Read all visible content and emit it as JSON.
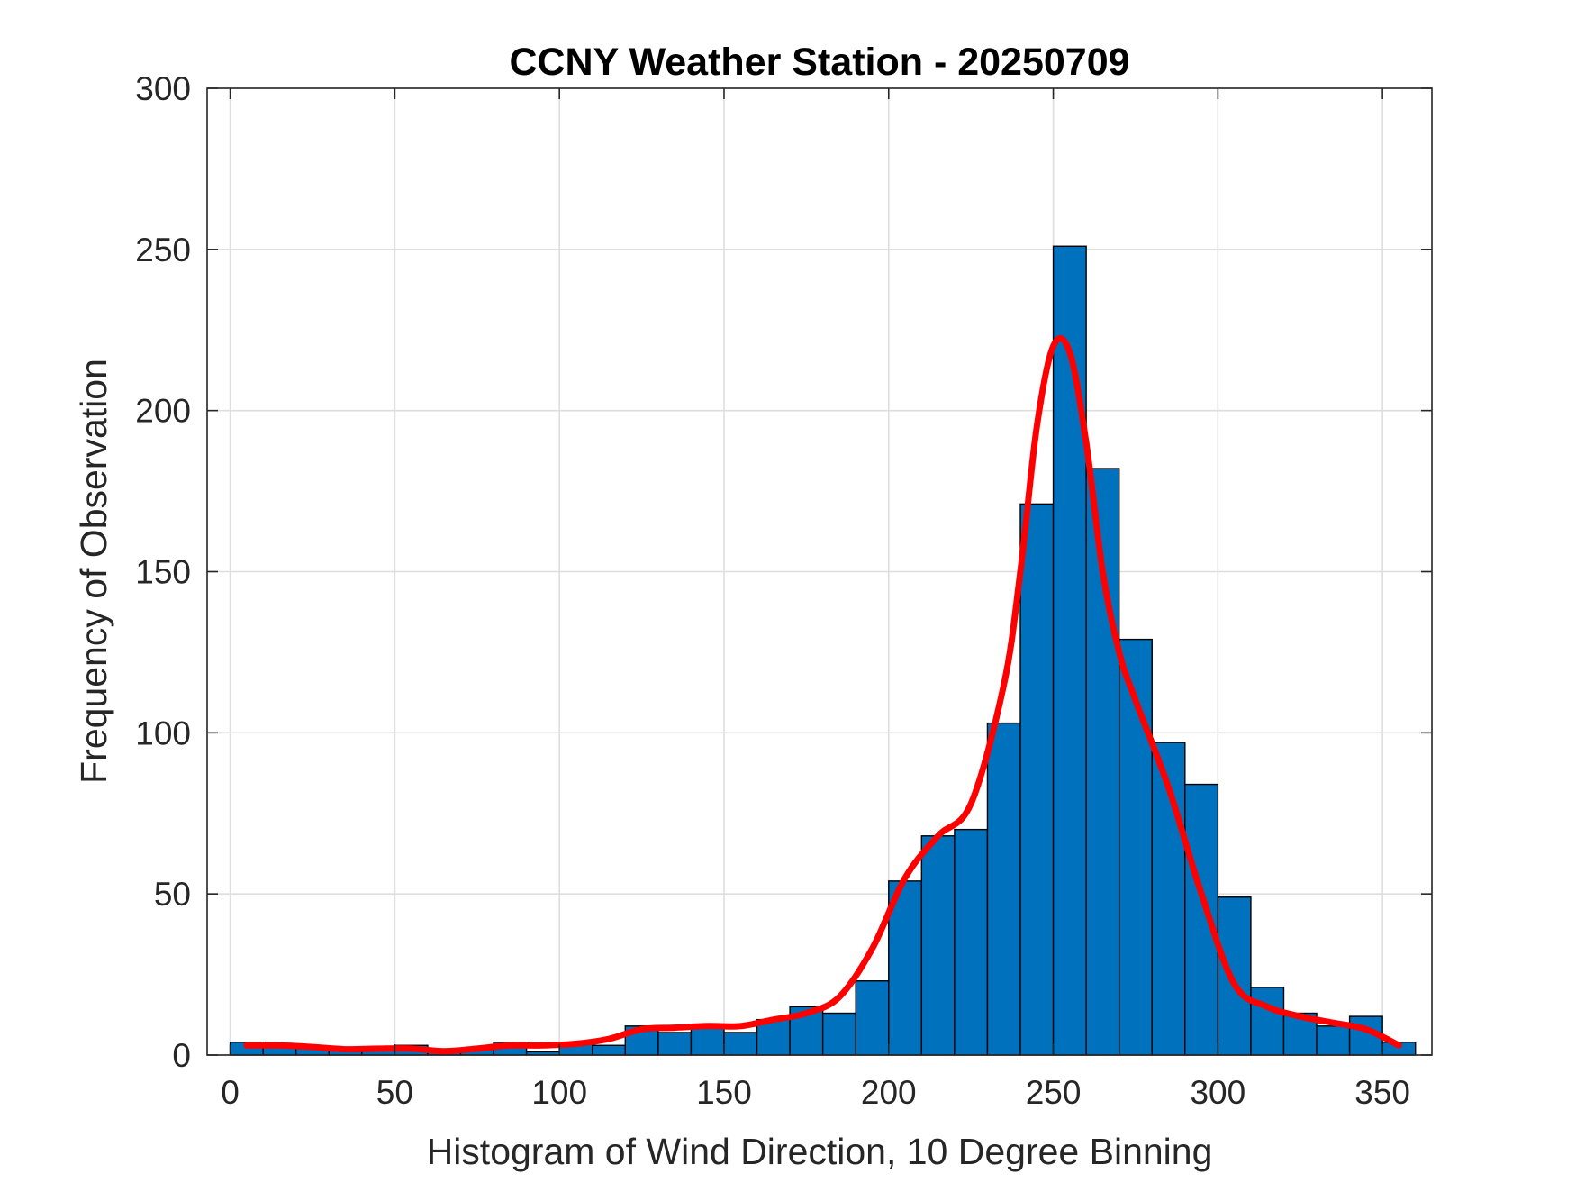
{
  "chart_data": {
    "type": "bar",
    "title": "CCNY Weather Station - 20250709",
    "xlabel": "Histogram of Wind Direction, 10 Degree Binning",
    "ylabel": "Frequency of Observation",
    "xlim": [
      -7,
      365
    ],
    "ylim": [
      0,
      300
    ],
    "xticks": [
      0,
      50,
      100,
      150,
      200,
      250,
      300,
      350
    ],
    "yticks": [
      0,
      50,
      100,
      150,
      200,
      250,
      300
    ],
    "grid": true,
    "bin_width": 10,
    "bin_edges": [
      0,
      10,
      20,
      30,
      40,
      50,
      60,
      70,
      80,
      90,
      100,
      110,
      120,
      130,
      140,
      150,
      160,
      170,
      180,
      190,
      200,
      210,
      220,
      230,
      240,
      250,
      260,
      270,
      280,
      290,
      300,
      310,
      320,
      330,
      340,
      350,
      360
    ],
    "values": [
      4,
      3,
      2,
      2,
      2,
      3,
      1,
      2,
      4,
      1,
      4,
      3,
      9,
      7,
      9,
      7,
      11,
      15,
      13,
      23,
      54,
      68,
      70,
      103,
      171,
      251,
      182,
      129,
      97,
      84,
      49,
      21,
      13,
      9,
      12,
      4
    ],
    "series": [
      {
        "type": "line",
        "x": [
          5,
          15,
          25,
          35,
          45,
          55,
          65,
          75,
          85,
          95,
          105,
          115,
          125,
          135,
          145,
          155,
          165,
          175,
          185,
          195,
          205,
          215,
          225,
          235,
          240,
          245,
          250,
          255,
          260,
          265,
          270,
          275,
          285,
          295,
          305,
          315,
          325,
          335,
          345,
          355
        ],
        "values": [
          3,
          3,
          2.5,
          1.8,
          2,
          2,
          1.2,
          2,
          3,
          3,
          3.5,
          5,
          8,
          8.5,
          9,
          9,
          11,
          13,
          18,
          33,
          55,
          68,
          78,
          115,
          150,
          195,
          220,
          218,
          190,
          150,
          125,
          110,
          83,
          50,
          22,
          15,
          12,
          10,
          8,
          3
        ]
      }
    ],
    "colors": {
      "bars": "#0072BD",
      "line": "#FF0000"
    }
  }
}
